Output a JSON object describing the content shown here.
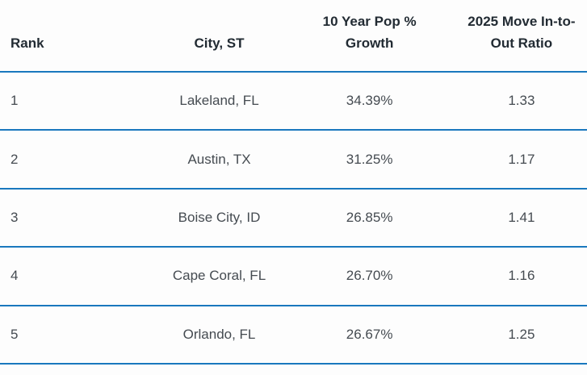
{
  "table": {
    "header": {
      "rank": "Rank",
      "city": "City, ST",
      "growth": "10 Year Pop %\nGrowth",
      "ratio": "2025 Move In-to-\nOut Ratio"
    },
    "rows": [
      {
        "rank": "1",
        "city": "Lakeland, FL",
        "growth": "34.39%",
        "ratio": "1.33"
      },
      {
        "rank": "2",
        "city": "Austin, TX",
        "growth": "31.25%",
        "ratio": "1.17"
      },
      {
        "rank": "3",
        "city": "Boise City, ID",
        "growth": "26.85%",
        "ratio": "1.41"
      },
      {
        "rank": "4",
        "city": "Cape Coral, FL",
        "growth": "26.70%",
        "ratio": "1.16"
      },
      {
        "rank": "5",
        "city": "Orlando, FL",
        "growth": "26.67%",
        "ratio": "1.25"
      }
    ]
  },
  "colors": {
    "separator_blue": "#1a78be",
    "header_text": "#222b33",
    "body_text": "#454b51",
    "background": "#fdfdfd"
  },
  "chart_data": {
    "type": "table",
    "columns": [
      "Rank",
      "City, ST",
      "10 Year Pop % Growth",
      "2025 Move In-to-Out Ratio"
    ],
    "rows": [
      [
        1,
        "Lakeland, FL",
        "34.39%",
        1.33
      ],
      [
        2,
        "Austin, TX",
        "31.25%",
        1.17
      ],
      [
        3,
        "Boise City, ID",
        "26.85%",
        1.41
      ],
      [
        4,
        "Cape Coral, FL",
        "26.70%",
        1.16
      ],
      [
        5,
        "Orlando, FL",
        "26.67%",
        1.25
      ]
    ]
  }
}
